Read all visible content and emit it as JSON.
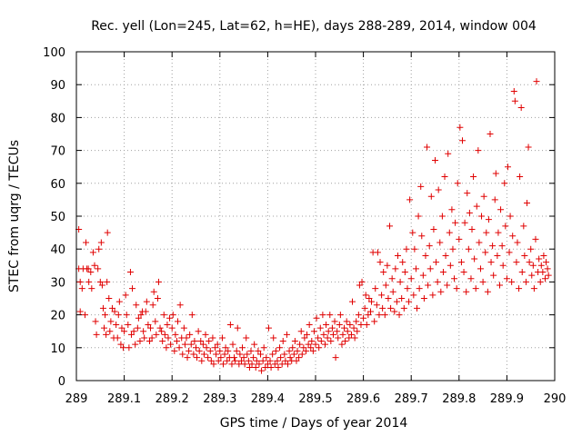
{
  "chart_data": {
    "type": "scatter",
    "title": "Rec. yell (Lon=245, Lat=62, h=HE), days 288-289, 2014, window 004",
    "xlabel": "GPS time / Days of year 2014",
    "ylabel": "STEC from uqrg / TECUs",
    "xlim": [
      289,
      290
    ],
    "ylim": [
      0,
      100
    ],
    "x_ticks": [
      "289",
      "289.1",
      "289.2",
      "289.3",
      "289.4",
      "289.5",
      "289.6",
      "289.7",
      "289.8",
      "289.9",
      "290"
    ],
    "y_ticks": [
      "0",
      "10",
      "20",
      "30",
      "40",
      "50",
      "60",
      "70",
      "80",
      "90",
      "100"
    ],
    "grid": true,
    "marker": "plus",
    "color": "#e00000",
    "points": [
      [
        289.005,
        46
      ],
      [
        289.005,
        34
      ],
      [
        289.008,
        30
      ],
      [
        289.008,
        21
      ],
      [
        289.012,
        28
      ],
      [
        289.014,
        34
      ],
      [
        289.018,
        20
      ],
      [
        289.02,
        42
      ],
      [
        289.022,
        34
      ],
      [
        289.025,
        34
      ],
      [
        289.026,
        30
      ],
      [
        289.03,
        33
      ],
      [
        289.032,
        28
      ],
      [
        289.035,
        39
      ],
      [
        289.038,
        35
      ],
      [
        289.04,
        18
      ],
      [
        289.042,
        14
      ],
      [
        289.045,
        34
      ],
      [
        289.047,
        40
      ],
      [
        289.05,
        30
      ],
      [
        289.052,
        42
      ],
      [
        289.054,
        29
      ],
      [
        289.056,
        22
      ],
      [
        289.058,
        16
      ],
      [
        289.06,
        20
      ],
      [
        289.062,
        14
      ],
      [
        289.064,
        30
      ],
      [
        289.065,
        45
      ],
      [
        289.068,
        25
      ],
      [
        289.07,
        15
      ],
      [
        289.072,
        18
      ],
      [
        289.075,
        22
      ],
      [
        289.078,
        13
      ],
      [
        289.08,
        21
      ],
      [
        289.083,
        17
      ],
      [
        289.086,
        13
      ],
      [
        289.088,
        20
      ],
      [
        289.09,
        24
      ],
      [
        289.093,
        11
      ],
      [
        289.095,
        16
      ],
      [
        289.098,
        10
      ],
      [
        289.1,
        15
      ],
      [
        289.103,
        26
      ],
      [
        289.105,
        20
      ],
      [
        289.108,
        17
      ],
      [
        289.11,
        10
      ],
      [
        289.113,
        33
      ],
      [
        289.115,
        14
      ],
      [
        289.117,
        28
      ],
      [
        289.12,
        15
      ],
      [
        289.123,
        11
      ],
      [
        289.125,
        23
      ],
      [
        289.128,
        16
      ],
      [
        289.13,
        19
      ],
      [
        289.133,
        12
      ],
      [
        289.135,
        20
      ],
      [
        289.138,
        21
      ],
      [
        289.14,
        15
      ],
      [
        289.142,
        13
      ],
      [
        289.145,
        21
      ],
      [
        289.147,
        24
      ],
      [
        289.15,
        17
      ],
      [
        289.153,
        12
      ],
      [
        289.155,
        16
      ],
      [
        289.158,
        13
      ],
      [
        289.16,
        23
      ],
      [
        289.162,
        27
      ],
      [
        289.165,
        18
      ],
      [
        289.167,
        14
      ],
      [
        289.17,
        25
      ],
      [
        289.172,
        30
      ],
      [
        289.175,
        16
      ],
      [
        289.178,
        15
      ],
      [
        289.18,
        12
      ],
      [
        289.183,
        20
      ],
      [
        289.185,
        14
      ],
      [
        289.188,
        10
      ],
      [
        289.19,
        17
      ],
      [
        289.192,
        13
      ],
      [
        289.195,
        19
      ],
      [
        289.197,
        11
      ],
      [
        289.2,
        16
      ],
      [
        289.202,
        20
      ],
      [
        289.205,
        9
      ],
      [
        289.207,
        14
      ],
      [
        289.21,
        12
      ],
      [
        289.212,
        18
      ],
      [
        289.215,
        10
      ],
      [
        289.217,
        23
      ],
      [
        289.22,
        13
      ],
      [
        289.222,
        8
      ],
      [
        289.225,
        16
      ],
      [
        289.227,
        11
      ],
      [
        289.23,
        13
      ],
      [
        289.232,
        7
      ],
      [
        289.235,
        9
      ],
      [
        289.237,
        14
      ],
      [
        289.24,
        11
      ],
      [
        289.242,
        20
      ],
      [
        289.245,
        8
      ],
      [
        289.247,
        12
      ],
      [
        289.25,
        10
      ],
      [
        289.252,
        7
      ],
      [
        289.255,
        15
      ],
      [
        289.257,
        9
      ],
      [
        289.26,
        12
      ],
      [
        289.262,
        6
      ],
      [
        289.265,
        11
      ],
      [
        289.267,
        8
      ],
      [
        289.27,
        14
      ],
      [
        289.272,
        10
      ],
      [
        289.275,
        7
      ],
      [
        289.277,
        12
      ],
      [
        289.28,
        9
      ],
      [
        289.282,
        6
      ],
      [
        289.285,
        13
      ],
      [
        289.287,
        5
      ],
      [
        289.29,
        10
      ],
      [
        289.292,
        8
      ],
      [
        289.295,
        11
      ],
      [
        289.297,
        6
      ],
      [
        289.3,
        9
      ],
      [
        289.302,
        7
      ],
      [
        289.305,
        13
      ],
      [
        289.307,
        5
      ],
      [
        289.31,
        8
      ],
      [
        289.312,
        10
      ],
      [
        289.315,
        6
      ],
      [
        289.317,
        9
      ],
      [
        289.32,
        7
      ],
      [
        289.322,
        17
      ],
      [
        289.325,
        5
      ],
      [
        289.327,
        11
      ],
      [
        289.33,
        7
      ],
      [
        289.332,
        6
      ],
      [
        289.335,
        9
      ],
      [
        289.337,
        16
      ],
      [
        289.34,
        5
      ],
      [
        289.342,
        8
      ],
      [
        289.345,
        6
      ],
      [
        289.347,
        10
      ],
      [
        289.35,
        7
      ],
      [
        289.352,
        5
      ],
      [
        289.355,
        13
      ],
      [
        289.357,
        8
      ],
      [
        289.36,
        6
      ],
      [
        289.362,
        4
      ],
      [
        289.365,
        9
      ],
      [
        289.367,
        5
      ],
      [
        289.37,
        7
      ],
      [
        289.372,
        11
      ],
      [
        289.375,
        4
      ],
      [
        289.377,
        6
      ],
      [
        289.38,
        9
      ],
      [
        289.382,
        5
      ],
      [
        289.385,
        8
      ],
      [
        289.387,
        3
      ],
      [
        289.39,
        6
      ],
      [
        289.392,
        10
      ],
      [
        289.395,
        4
      ],
      [
        289.397,
        7
      ],
      [
        289.4,
        5
      ],
      [
        289.402,
        16
      ],
      [
        289.405,
        6
      ],
      [
        289.407,
        4
      ],
      [
        289.41,
        8
      ],
      [
        289.412,
        13
      ],
      [
        289.415,
        5
      ],
      [
        289.417,
        9
      ],
      [
        289.42,
        6
      ],
      [
        289.422,
        4
      ],
      [
        289.425,
        10
      ],
      [
        289.427,
        7
      ],
      [
        289.43,
        5
      ],
      [
        289.432,
        12
      ],
      [
        289.435,
        8
      ],
      [
        289.437,
        6
      ],
      [
        289.44,
        14
      ],
      [
        289.442,
        5
      ],
      [
        289.445,
        9
      ],
      [
        289.447,
        7
      ],
      [
        289.45,
        6
      ],
      [
        289.452,
        10
      ],
      [
        289.455,
        8
      ],
      [
        289.457,
        12
      ],
      [
        289.46,
        6
      ],
      [
        289.462,
        9
      ],
      [
        289.465,
        7
      ],
      [
        289.467,
        11
      ],
      [
        289.47,
        15
      ],
      [
        289.472,
        8
      ],
      [
        289.475,
        10
      ],
      [
        289.477,
        13
      ],
      [
        289.48,
        9
      ],
      [
        289.482,
        14
      ],
      [
        289.485,
        11
      ],
      [
        289.487,
        17
      ],
      [
        289.49,
        10
      ],
      [
        289.492,
        12
      ],
      [
        289.495,
        9
      ],
      [
        289.497,
        15
      ],
      [
        289.5,
        11
      ],
      [
        289.502,
        19
      ],
      [
        289.505,
        13
      ],
      [
        289.507,
        10
      ],
      [
        289.51,
        16
      ],
      [
        289.512,
        12
      ],
      [
        289.515,
        20
      ],
      [
        289.517,
        14
      ],
      [
        289.52,
        11
      ],
      [
        289.522,
        17
      ],
      [
        289.525,
        13
      ],
      [
        289.527,
        15
      ],
      [
        289.53,
        20
      ],
      [
        289.532,
        12
      ],
      [
        289.535,
        16
      ],
      [
        289.537,
        14
      ],
      [
        289.54,
        18
      ],
      [
        289.542,
        7
      ],
      [
        289.545,
        15
      ],
      [
        289.547,
        13
      ],
      [
        289.55,
        17
      ],
      [
        289.552,
        20
      ],
      [
        289.555,
        11
      ],
      [
        289.557,
        14
      ],
      [
        289.56,
        16
      ],
      [
        289.562,
        12
      ],
      [
        289.565,
        18
      ],
      [
        289.567,
        15
      ],
      [
        289.57,
        13
      ],
      [
        289.572,
        17
      ],
      [
        289.575,
        14
      ],
      [
        289.577,
        24
      ],
      [
        289.58,
        16
      ],
      [
        289.582,
        13
      ],
      [
        289.585,
        18
      ],
      [
        289.587,
        15
      ],
      [
        289.59,
        20
      ],
      [
        289.592,
        29
      ],
      [
        289.595,
        17
      ],
      [
        289.597,
        30
      ],
      [
        289.6,
        19
      ],
      [
        289.603,
        22
      ],
      [
        289.605,
        26
      ],
      [
        289.607,
        17
      ],
      [
        289.61,
        20
      ],
      [
        289.612,
        25
      ],
      [
        289.615,
        21
      ],
      [
        289.617,
        24
      ],
      [
        289.62,
        39
      ],
      [
        289.623,
        18
      ],
      [
        289.625,
        28
      ],
      [
        289.628,
        23
      ],
      [
        289.63,
        39
      ],
      [
        289.633,
        20
      ],
      [
        289.635,
        36
      ],
      [
        289.638,
        26
      ],
      [
        289.64,
        22
      ],
      [
        289.642,
        33
      ],
      [
        289.645,
        20
      ],
      [
        289.647,
        29
      ],
      [
        289.65,
        35
      ],
      [
        289.652,
        25
      ],
      [
        289.655,
        47
      ],
      [
        289.657,
        22
      ],
      [
        289.66,
        31
      ],
      [
        289.662,
        27
      ],
      [
        289.665,
        21
      ],
      [
        289.667,
        34
      ],
      [
        289.67,
        24
      ],
      [
        289.672,
        38
      ],
      [
        289.675,
        20
      ],
      [
        289.677,
        30
      ],
      [
        289.68,
        25
      ],
      [
        289.682,
        36
      ],
      [
        289.685,
        22
      ],
      [
        289.687,
        33
      ],
      [
        289.69,
        40
      ],
      [
        289.692,
        28
      ],
      [
        289.695,
        24
      ],
      [
        289.697,
        55
      ],
      [
        289.7,
        31
      ],
      [
        289.703,
        45
      ],
      [
        289.705,
        26
      ],
      [
        289.707,
        40
      ],
      [
        289.71,
        34
      ],
      [
        289.712,
        22
      ],
      [
        289.715,
        50
      ],
      [
        289.717,
        28
      ],
      [
        289.72,
        59
      ],
      [
        289.722,
        44
      ],
      [
        289.725,
        32
      ],
      [
        289.727,
        25
      ],
      [
        289.73,
        38
      ],
      [
        289.733,
        71
      ],
      [
        289.735,
        29
      ],
      [
        289.738,
        41
      ],
      [
        289.74,
        34
      ],
      [
        289.742,
        56
      ],
      [
        289.745,
        26
      ],
      [
        289.747,
        46
      ],
      [
        289.75,
        67
      ],
      [
        289.752,
        36
      ],
      [
        289.755,
        30
      ],
      [
        289.757,
        58
      ],
      [
        289.76,
        42
      ],
      [
        289.762,
        27
      ],
      [
        289.765,
        50
      ],
      [
        289.767,
        33
      ],
      [
        289.77,
        62
      ],
      [
        289.772,
        38
      ],
      [
        289.775,
        29
      ],
      [
        289.777,
        69
      ],
      [
        289.78,
        45
      ],
      [
        289.782,
        35
      ],
      [
        289.785,
        52
      ],
      [
        289.787,
        40
      ],
      [
        289.79,
        31
      ],
      [
        289.792,
        48
      ],
      [
        289.795,
        28
      ],
      [
        289.797,
        60
      ],
      [
        289.8,
        43
      ],
      [
        289.802,
        77
      ],
      [
        289.805,
        36
      ],
      [
        289.807,
        73
      ],
      [
        289.81,
        33
      ],
      [
        289.812,
        48
      ],
      [
        289.815,
        27
      ],
      [
        289.817,
        57
      ],
      [
        289.82,
        40
      ],
      [
        289.822,
        51
      ],
      [
        289.825,
        31
      ],
      [
        289.827,
        46
      ],
      [
        289.83,
        62
      ],
      [
        289.832,
        37
      ],
      [
        289.835,
        28
      ],
      [
        289.837,
        53
      ],
      [
        289.84,
        70
      ],
      [
        289.842,
        42
      ],
      [
        289.845,
        34
      ],
      [
        289.847,
        50
      ],
      [
        289.85,
        30
      ],
      [
        289.852,
        56
      ],
      [
        289.855,
        39
      ],
      [
        289.857,
        45
      ],
      [
        289.86,
        27
      ],
      [
        289.862,
        49
      ],
      [
        289.865,
        75
      ],
      [
        289.867,
        36
      ],
      [
        289.87,
        41
      ],
      [
        289.872,
        32
      ],
      [
        289.875,
        55
      ],
      [
        289.877,
        63
      ],
      [
        289.88,
        38
      ],
      [
        289.882,
        45
      ],
      [
        289.885,
        29
      ],
      [
        289.887,
        52
      ],
      [
        289.89,
        41
      ],
      [
        289.892,
        35
      ],
      [
        289.895,
        60
      ],
      [
        289.897,
        47
      ],
      [
        289.9,
        31
      ],
      [
        289.902,
        65
      ],
      [
        289.905,
        39
      ],
      [
        289.907,
        50
      ],
      [
        289.91,
        30
      ],
      [
        289.912,
        44
      ],
      [
        289.915,
        88
      ],
      [
        289.917,
        85
      ],
      [
        289.92,
        36
      ],
      [
        289.922,
        42
      ],
      [
        289.925,
        28
      ],
      [
        289.927,
        62
      ],
      [
        289.93,
        83
      ],
      [
        289.932,
        33
      ],
      [
        289.935,
        47
      ],
      [
        289.937,
        38
      ],
      [
        289.94,
        30
      ],
      [
        289.942,
        54
      ],
      [
        289.945,
        71
      ],
      [
        289.947,
        36
      ],
      [
        289.95,
        40
      ],
      [
        289.952,
        32
      ],
      [
        289.955,
        35
      ],
      [
        289.957,
        28
      ],
      [
        289.96,
        43
      ],
      [
        289.962,
        91
      ],
      [
        289.965,
        33
      ],
      [
        289.967,
        37
      ],
      [
        289.97,
        30
      ],
      [
        289.972,
        35
      ],
      [
        289.975,
        33
      ],
      [
        289.977,
        38
      ],
      [
        289.98,
        31
      ],
      [
        289.982,
        36
      ],
      [
        289.985,
        34
      ],
      [
        289.987,
        32
      ]
    ]
  }
}
